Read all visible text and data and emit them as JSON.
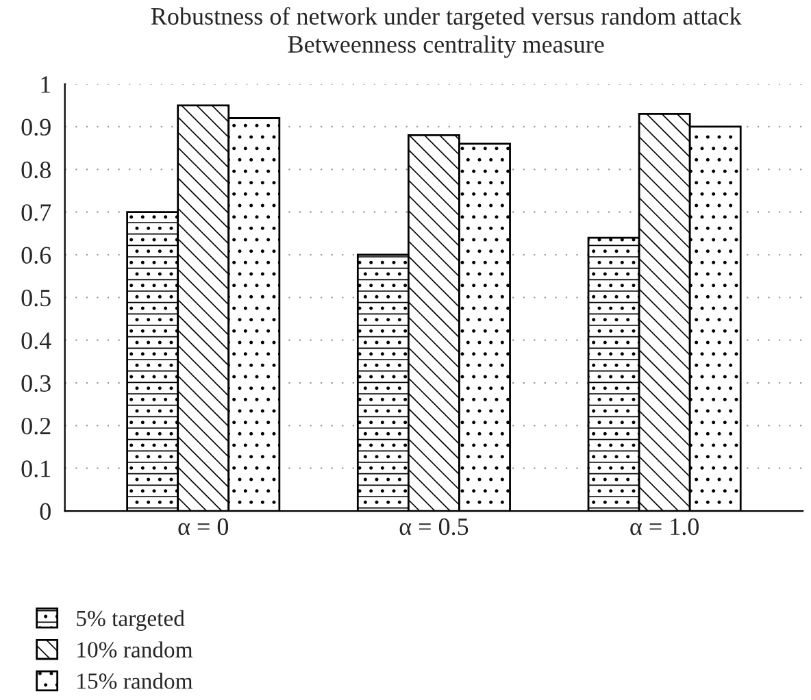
{
  "chart_data": {
    "type": "bar",
    "title": "Robustness of network under targeted versus random attack",
    "subtitle": "Betweenness centrality measure",
    "categories": [
      "α = 0",
      "α = 0.5",
      "α = 1.0"
    ],
    "series": [
      {
        "name": "5% targeted",
        "color": "#000000",
        "values": [
          0.7,
          0.6,
          0.64
        ]
      },
      {
        "name": "10% random",
        "color": "#000000",
        "values": [
          0.95,
          0.88,
          0.93
        ]
      },
      {
        "name": "15% random",
        "color": "#000000",
        "values": [
          0.92,
          0.86,
          0.9
        ]
      }
    ],
    "ylim": [
      0,
      1
    ],
    "yticks": [
      0,
      0.1,
      0.2,
      0.3,
      0.4,
      0.5,
      0.6,
      0.7,
      0.8,
      0.9,
      1
    ],
    "grid": "y",
    "legend": "bottom left"
  }
}
